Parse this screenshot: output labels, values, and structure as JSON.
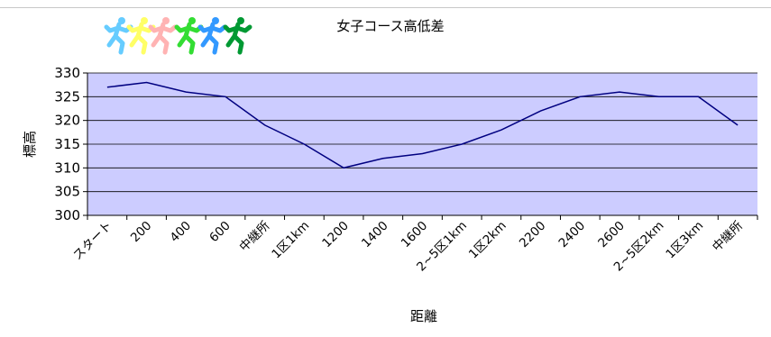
{
  "chart_data": {
    "type": "line",
    "title": "女子コース高低差",
    "xlabel": "距離",
    "ylabel": "標高",
    "ylim": [
      300,
      330
    ],
    "yticks": [
      300,
      305,
      310,
      315,
      320,
      325,
      330
    ],
    "grid": true,
    "legend": "none",
    "categories": [
      "スタート",
      "200",
      "400",
      "600",
      "中継所",
      "1区1km",
      "1200",
      "1400",
      "1600",
      "2~5区1km",
      "1区2km",
      "2200",
      "2400",
      "2600",
      "2~5区2km",
      "1区3km",
      "中継所"
    ],
    "series": [
      {
        "values": [
          327,
          328,
          326,
          325,
          319,
          315,
          310,
          312,
          313,
          315,
          318,
          322,
          325,
          326,
          325,
          325,
          319
        ]
      }
    ],
    "colors": {
      "plot_background": "#ccccff",
      "line": "#000080",
      "gridline": "#000000"
    }
  },
  "decoration": {
    "runner_colors": [
      "#66ccff",
      "#ffff66",
      "#ffb3b3",
      "#33dd33",
      "#3399ff",
      "#009933"
    ]
  }
}
